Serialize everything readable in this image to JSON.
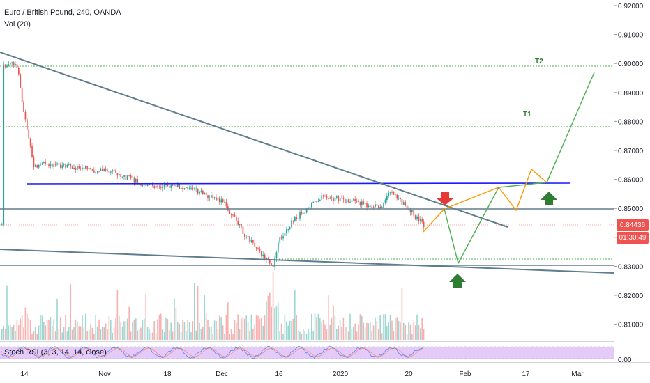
{
  "header": {
    "title": "Euro / British Pound, 240, OANDA",
    "volume_label": "Vol (20)",
    "stoch_label": "Stoch RSI (3, 3, 14, 14, close)"
  },
  "price_axis": {
    "ticks": [
      "0.92000",
      "0.91000",
      "0.90000",
      "0.89000",
      "0.88000",
      "0.87000",
      "0.86000",
      "0.85000",
      "0.84000",
      "0.83000",
      "0.82000",
      "0.81000"
    ],
    "stoch_tick": "0.00",
    "current_price": "0.84436",
    "countdown": "01:30:49",
    "current_price_color": "#ef5350",
    "countdown_color": "#ef5350"
  },
  "time_axis": {
    "ticks": [
      "14",
      "Nov",
      "18",
      "Dec",
      "16",
      "2020",
      "20",
      "Feb",
      "17",
      "Mar"
    ]
  },
  "annotations": {
    "t1": "T1",
    "t2": "T2"
  },
  "colors": {
    "up": "#26a69a",
    "down": "#ef5350",
    "trend": "#607d8b",
    "resistance": "#1a1aff",
    "target": "#4caf50",
    "projection_orange": "#ff9800",
    "projection_green": "#4caf50",
    "arrow_up": "#2e7d32",
    "arrow_down": "#e53935",
    "stoch_band": "#d1a7f5"
  },
  "chart_data": {
    "type": "candlestick",
    "symbol": "EUR/GBP",
    "timeframe": "240",
    "ylim": [
      0.805,
      0.921
    ],
    "price_path": [
      {
        "x": "14 Oct",
        "y": 0.8988
      },
      {
        "x": "16 Oct",
        "y": 0.9005
      },
      {
        "x": "17 Oct",
        "y": 0.896
      },
      {
        "x": "18 Oct",
        "y": 0.885
      },
      {
        "x": "21 Oct",
        "y": 0.875
      },
      {
        "x": "23 Oct",
        "y": 0.8643
      },
      {
        "x": "28 Oct",
        "y": 0.8655
      },
      {
        "x": "4 Nov",
        "y": 0.864
      },
      {
        "x": "11 Nov",
        "y": 0.8625
      },
      {
        "x": "18 Nov",
        "y": 0.858
      },
      {
        "x": "25 Nov",
        "y": 0.8575
      },
      {
        "x": "2 Dec",
        "y": 0.852
      },
      {
        "x": "9 Dec",
        "y": 0.841
      },
      {
        "x": "13 Dec",
        "y": 0.8295
      },
      {
        "x": "16 Dec",
        "y": 0.8385
      },
      {
        "x": "20 Dec",
        "y": 0.846
      },
      {
        "x": "27 Dec",
        "y": 0.854
      },
      {
        "x": "3 Jan",
        "y": 0.8525
      },
      {
        "x": "10 Jan",
        "y": 0.85
      },
      {
        "x": "17 Jan",
        "y": 0.856
      },
      {
        "x": "20 Jan",
        "y": 0.851
      },
      {
        "x": "24 Jan",
        "y": 0.8444
      }
    ],
    "levels": {
      "resistance": 0.8588,
      "horizontal_1": 0.8497,
      "horizontal_2": 0.8302,
      "t1": 0.8783,
      "t2": 0.8987,
      "support_dotted": 0.8324
    },
    "projection_orange": [
      {
        "x": "24 Jan",
        "y": 0.8444
      },
      {
        "x": "28 Jan",
        "y": 0.8497
      },
      {
        "x": "10 Feb",
        "y": 0.859
      },
      {
        "x": "14 Feb",
        "y": 0.8497
      },
      {
        "x": "20 Feb",
        "y": 0.864
      },
      {
        "x": "24 Feb",
        "y": 0.8588
      }
    ],
    "projection_green": [
      {
        "x": "28 Jan",
        "y": 0.8497
      },
      {
        "x": "31 Jan",
        "y": 0.8315
      },
      {
        "x": "10 Feb",
        "y": 0.8588
      },
      {
        "x": "24 Feb",
        "y": 0.8588
      },
      {
        "x": "3 Mar",
        "y": 0.8965
      }
    ]
  }
}
